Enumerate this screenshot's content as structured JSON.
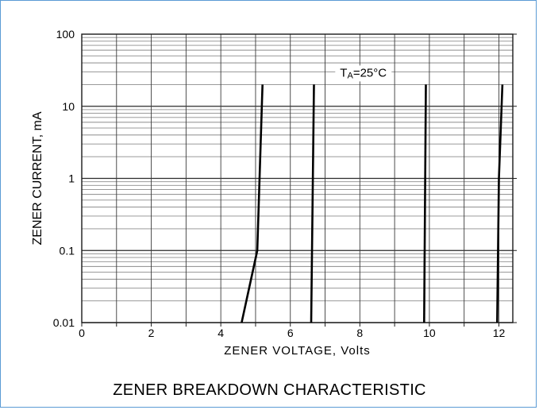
{
  "chart_data": {
    "type": "line",
    "xlabel": "ZENER VOLTAGE, Volts",
    "ylabel": "ZENER CURRENT, mA",
    "x_ticks": [
      "0",
      "2",
      "4",
      "6",
      "8",
      "10",
      "12"
    ],
    "y_ticks": [
      "0.01",
      "0.1",
      "1",
      "10",
      "100"
    ],
    "xlim": [
      0,
      12.4
    ],
    "ylim": [
      0.01,
      100
    ],
    "yscale": "log",
    "grid": true,
    "legend": null,
    "annotation": {
      "prefix": "T",
      "subscript": "A",
      "suffix": "=25°C"
    },
    "series": [
      {
        "points": [
          {
            "x": 4.6,
            "y": 0.01
          },
          {
            "x": 5.05,
            "y": 0.1
          },
          {
            "x": 5.2,
            "y": 20
          }
        ]
      },
      {
        "points": [
          {
            "x": 6.6,
            "y": 0.01
          },
          {
            "x": 6.68,
            "y": 20
          }
        ]
      },
      {
        "points": [
          {
            "x": 9.85,
            "y": 0.01
          },
          {
            "x": 9.9,
            "y": 20
          }
        ]
      },
      {
        "points": [
          {
            "x": 11.95,
            "y": 0.01
          },
          {
            "x": 12.0,
            "y": 1
          },
          {
            "x": 12.1,
            "y": 20
          }
        ]
      }
    ]
  },
  "caption": "ZENER BREAKDOWN CHARACTERISTIC"
}
